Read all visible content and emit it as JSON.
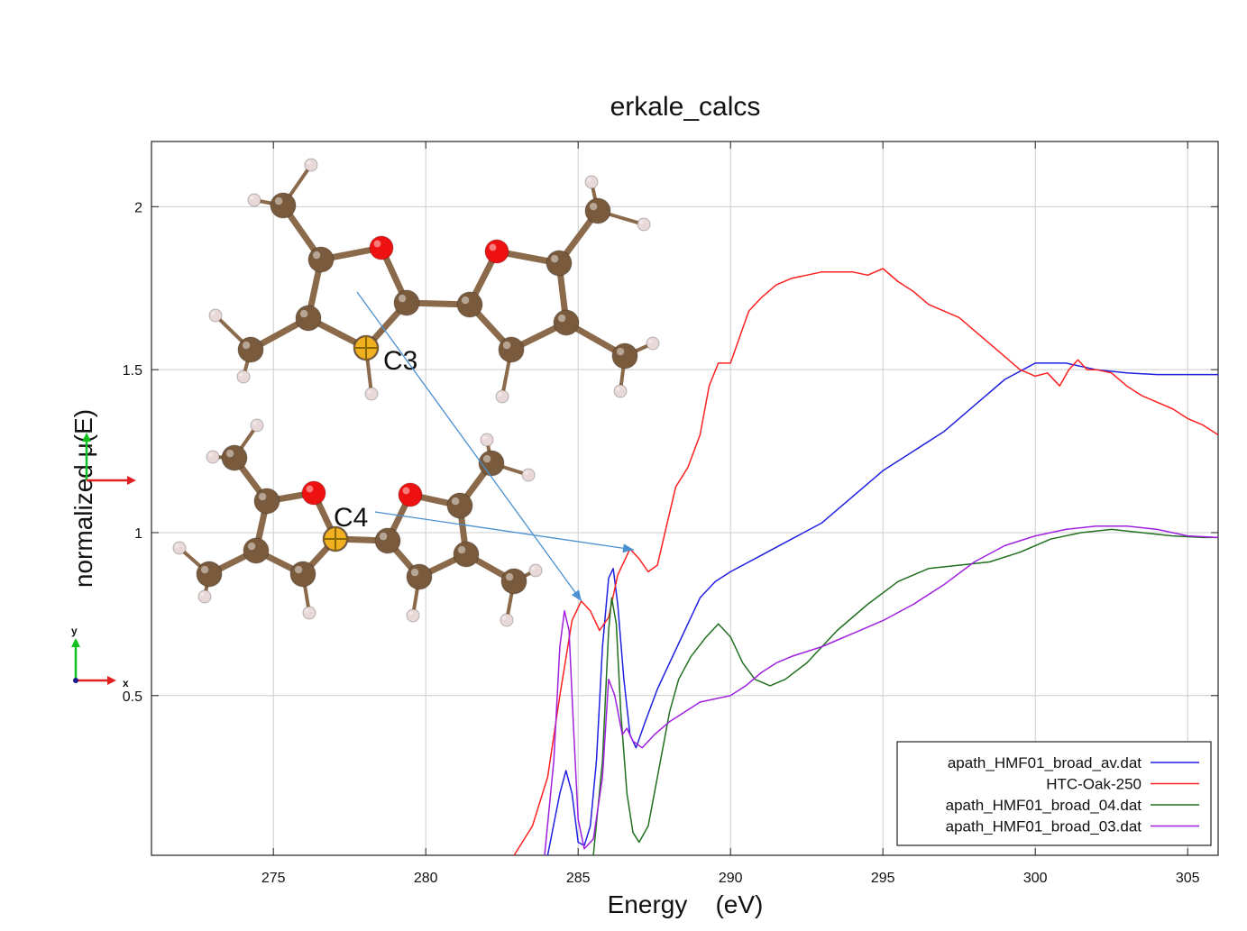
{
  "chart_data": {
    "type": "line",
    "title": "erkale_calcs",
    "xlabel": "Energy    (eV)",
    "ylabel": "normalized μ(E)",
    "xlim": [
      271,
      306
    ],
    "ylim": [
      0.01,
      2.2
    ],
    "xticks": [
      275,
      280,
      285,
      290,
      295,
      300,
      305
    ],
    "yticks": [
      0.5,
      1,
      1.5,
      2
    ],
    "grid": true,
    "legend_position": "bottom-right",
    "series": [
      {
        "name": "apath_HMF01_broad_av.dat",
        "color": "#2020e0",
        "x": [
          284.0,
          284.4,
          284.6,
          284.8,
          285.0,
          285.2,
          285.4,
          285.6,
          285.8,
          286.0,
          286.15,
          286.3,
          286.5,
          286.7,
          286.9,
          287.2,
          287.6,
          288.0,
          288.5,
          289.0,
          289.5,
          290.0,
          291.0,
          292.0,
          293.0,
          294.0,
          295.0,
          296.0,
          297.0,
          298.0,
          299.0,
          300.0,
          301.0,
          302.0,
          303.0,
          304.0,
          305.0,
          306.0
        ],
        "y": [
          0.01,
          0.2,
          0.27,
          0.2,
          0.05,
          0.04,
          0.1,
          0.3,
          0.65,
          0.86,
          0.89,
          0.78,
          0.55,
          0.38,
          0.34,
          0.42,
          0.52,
          0.6,
          0.7,
          0.8,
          0.85,
          0.88,
          0.93,
          0.98,
          1.03,
          1.11,
          1.19,
          1.25,
          1.31,
          1.39,
          1.47,
          1.52,
          1.52,
          1.5,
          1.49,
          1.485,
          1.485,
          1.485
        ]
      },
      {
        "name": "HTC-Oak-250",
        "color": "#ff2020",
        "x": [
          282.9,
          283.5,
          284.0,
          284.4,
          284.8,
          285.1,
          285.4,
          285.7,
          286.0,
          286.3,
          286.7,
          287.0,
          287.3,
          287.6,
          287.9,
          288.2,
          288.6,
          289.0,
          289.3,
          289.6,
          290.0,
          290.3,
          290.6,
          291.0,
          291.5,
          292.0,
          292.5,
          293.0,
          293.5,
          294.0,
          294.5,
          295.0,
          295.5,
          296.0,
          296.5,
          297.0,
          297.5,
          298.0,
          298.5,
          299.0,
          299.5,
          300.0,
          300.4,
          300.8,
          301.1,
          301.4,
          301.7,
          302.0,
          302.5,
          303.0,
          303.5,
          304.0,
          304.5,
          305.0,
          305.5,
          306.0
        ],
        "y": [
          0.01,
          0.1,
          0.25,
          0.5,
          0.73,
          0.79,
          0.76,
          0.7,
          0.74,
          0.87,
          0.95,
          0.92,
          0.88,
          0.9,
          1.02,
          1.14,
          1.2,
          1.3,
          1.45,
          1.52,
          1.52,
          1.6,
          1.68,
          1.72,
          1.76,
          1.78,
          1.79,
          1.8,
          1.8,
          1.8,
          1.79,
          1.81,
          1.77,
          1.74,
          1.7,
          1.68,
          1.66,
          1.62,
          1.58,
          1.54,
          1.5,
          1.48,
          1.49,
          1.45,
          1.5,
          1.53,
          1.5,
          1.5,
          1.49,
          1.45,
          1.42,
          1.4,
          1.38,
          1.35,
          1.33,
          1.3
        ]
      },
      {
        "name": "apath_HMF01_broad_04.dat",
        "color": "#207020",
        "x": [
          285.5,
          285.8,
          286.0,
          286.1,
          286.25,
          286.4,
          286.6,
          286.8,
          287.0,
          287.3,
          287.7,
          288.0,
          288.3,
          288.7,
          289.2,
          289.6,
          290.0,
          290.4,
          290.8,
          291.3,
          291.8,
          292.5,
          293.5,
          294.5,
          295.5,
          296.5,
          297.5,
          298.5,
          299.5,
          300.5,
          301.5,
          302.5,
          303.5,
          304.5,
          305.5,
          306.0
        ],
        "y": [
          0.01,
          0.3,
          0.7,
          0.8,
          0.72,
          0.45,
          0.2,
          0.08,
          0.05,
          0.1,
          0.3,
          0.45,
          0.55,
          0.62,
          0.68,
          0.72,
          0.68,
          0.6,
          0.55,
          0.53,
          0.55,
          0.6,
          0.7,
          0.78,
          0.85,
          0.89,
          0.9,
          0.91,
          0.94,
          0.98,
          1.0,
          1.01,
          1.0,
          0.99,
          0.985,
          0.985
        ]
      },
      {
        "name": "apath_HMF01_broad_03.dat",
        "color": "#a020e0",
        "x": [
          283.9,
          284.2,
          284.4,
          284.55,
          284.7,
          284.85,
          285.0,
          285.2,
          285.5,
          285.8,
          286.0,
          286.2,
          286.45,
          286.6,
          286.8,
          287.1,
          287.5,
          288.0,
          288.5,
          289.0,
          289.5,
          290.0,
          290.5,
          291.0,
          291.5,
          292.0,
          293.0,
          294.0,
          295.0,
          296.0,
          297.0,
          298.0,
          299.0,
          300.0,
          301.0,
          302.0,
          303.0,
          304.0,
          305.0,
          306.0
        ],
        "y": [
          0.01,
          0.3,
          0.65,
          0.76,
          0.7,
          0.4,
          0.12,
          0.03,
          0.06,
          0.25,
          0.55,
          0.5,
          0.38,
          0.4,
          0.36,
          0.34,
          0.38,
          0.42,
          0.45,
          0.48,
          0.49,
          0.5,
          0.53,
          0.57,
          0.6,
          0.62,
          0.65,
          0.69,
          0.73,
          0.78,
          0.84,
          0.91,
          0.96,
          0.99,
          1.01,
          1.02,
          1.02,
          1.01,
          0.99,
          0.985
        ]
      }
    ],
    "annotations": [
      "C3",
      "C4"
    ]
  },
  "axis_glyph": {
    "x_label": "x",
    "y_label": "y"
  },
  "colors": {
    "carbon": "#7a5a3c",
    "oxygen": "#ee1111",
    "hydrogen": "#e8d8d8",
    "bond": "#8a6a4a",
    "marker": "#f0b020",
    "arrow": "#4a90d0"
  }
}
